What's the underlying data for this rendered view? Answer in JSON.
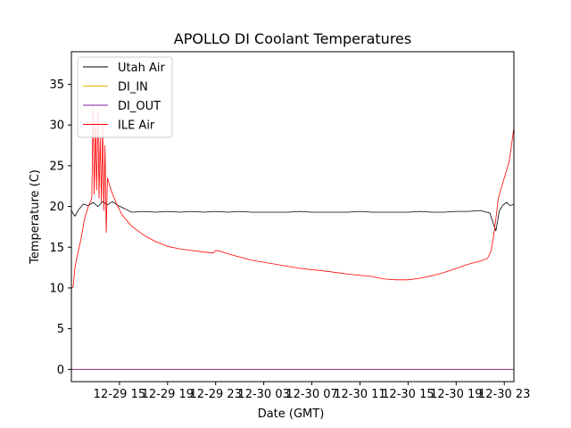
{
  "chart_data": {
    "type": "line",
    "title": "APOLLO DI Coolant Temperatures",
    "xlabel": "Date (GMT)",
    "ylabel": "Temperature (C)",
    "ylim": [
      -1.5,
      39
    ],
    "xlim": [
      11.0,
      47.8
    ],
    "x_units": "hours since 12-29 00:00 GMT",
    "yticks": [
      0,
      5,
      10,
      15,
      20,
      25,
      30,
      35
    ],
    "xticks": [
      {
        "pos": 15,
        "label": "12-29 15"
      },
      {
        "pos": 19,
        "label": "12-29 19"
      },
      {
        "pos": 23,
        "label": "12-29 23"
      },
      {
        "pos": 27,
        "label": "12-30 03"
      },
      {
        "pos": 31,
        "label": "12-30 07"
      },
      {
        "pos": 35,
        "label": "12-30 11"
      },
      {
        "pos": 39,
        "label": "12-30 15"
      },
      {
        "pos": 43,
        "label": "12-30 19"
      },
      {
        "pos": 47,
        "label": "12-30 23"
      }
    ],
    "legend_position": "top-left",
    "grid": false,
    "series": [
      {
        "name": "Utah Air",
        "color": "#000000",
        "x": [
          11.0,
          11.3,
          11.6,
          12.0,
          12.4,
          12.8,
          13.2,
          13.6,
          14.0,
          14.4,
          14.8,
          15.2,
          15.6,
          16.0,
          17.0,
          18.0,
          19.0,
          20.0,
          21.0,
          22.0,
          23.0,
          24.0,
          25.0,
          26.0,
          27.0,
          28.0,
          29.0,
          30.0,
          31.0,
          32.0,
          33.0,
          34.0,
          35.0,
          36.0,
          37.0,
          38.0,
          39.0,
          40.0,
          41.0,
          42.0,
          43.0,
          44.0,
          45.0,
          45.8,
          46.3,
          46.6,
          46.9,
          47.2,
          47.5,
          47.8
        ],
        "values": [
          19.5,
          18.8,
          19.6,
          20.3,
          20.1,
          20.5,
          20.0,
          20.6,
          20.2,
          20.6,
          20.2,
          19.9,
          19.6,
          19.3,
          19.4,
          19.3,
          19.4,
          19.3,
          19.4,
          19.3,
          19.4,
          19.3,
          19.4,
          19.3,
          19.3,
          19.3,
          19.3,
          19.4,
          19.3,
          19.3,
          19.3,
          19.3,
          19.4,
          19.3,
          19.3,
          19.3,
          19.3,
          19.4,
          19.3,
          19.3,
          19.4,
          19.4,
          19.5,
          19.2,
          17.0,
          19.5,
          20.2,
          20.5,
          20.1,
          20.3
        ]
      },
      {
        "name": "DI_IN",
        "color": "#e6b800",
        "x": [
          11.0,
          47.8
        ],
        "values": [
          0,
          0
        ]
      },
      {
        "name": "DI_OUT",
        "color": "#7a1fa2",
        "x": [
          11.0,
          47.8
        ],
        "values": [
          0,
          0
        ]
      },
      {
        "name": "ILE Air",
        "color": "#ff0000",
        "x": [
          11.0,
          11.15,
          11.3,
          11.5,
          11.8,
          12.1,
          12.4,
          12.7,
          12.8,
          12.9,
          13.0,
          13.1,
          13.2,
          13.3,
          13.4,
          13.5,
          13.6,
          13.7,
          13.8,
          13.9,
          14.0,
          14.3,
          14.7,
          15.2,
          16.0,
          17.0,
          18.0,
          19.0,
          20.0,
          21.0,
          22.0,
          22.8,
          23.0,
          23.4,
          24.0,
          26.0,
          28.0,
          30.0,
          32.0,
          34.0,
          36.0,
          37.0,
          38.0,
          39.0,
          40.0,
          41.0,
          42.0,
          43.0,
          44.0,
          45.0,
          45.6,
          45.9,
          46.1,
          46.3,
          46.5,
          46.8,
          47.1,
          47.4,
          47.6,
          47.8
        ],
        "values": [
          9.9,
          10.2,
          12.5,
          14.0,
          16.0,
          18.5,
          20.0,
          21.0,
          32.0,
          21.5,
          30.5,
          22.0,
          31.5,
          21.0,
          28.5,
          20.5,
          30.0,
          19.5,
          27.5,
          16.8,
          23.5,
          22.0,
          20.5,
          19.0,
          17.6,
          16.5,
          15.7,
          15.1,
          14.8,
          14.6,
          14.4,
          14.3,
          14.6,
          14.5,
          14.2,
          13.4,
          12.9,
          12.4,
          12.1,
          11.7,
          11.4,
          11.1,
          11.0,
          11.0,
          11.2,
          11.5,
          11.9,
          12.4,
          12.9,
          13.3,
          13.6,
          14.5,
          16.3,
          18.5,
          21.0,
          22.5,
          24.0,
          25.5,
          27.5,
          29.7
        ]
      }
    ]
  }
}
